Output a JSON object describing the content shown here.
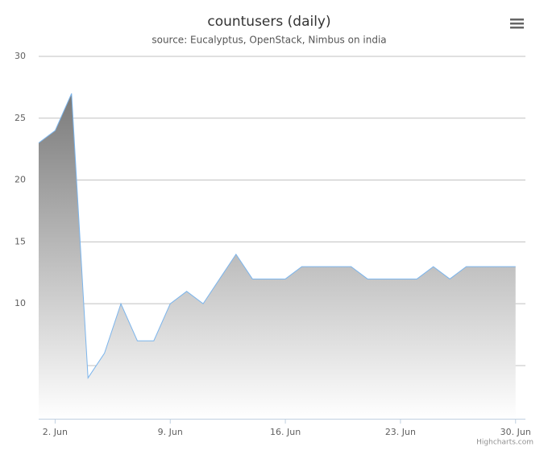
{
  "chart_data": {
    "type": "area",
    "title": "countusers (daily)",
    "subtitle": "source: Eucalyptus, OpenStack, Nimbus on india",
    "credits": "Highcharts.com",
    "x": [
      1,
      2,
      3,
      4,
      5,
      6,
      7,
      8,
      9,
      10,
      11,
      12,
      13,
      14,
      15,
      16,
      17,
      18,
      19,
      20,
      21,
      22,
      23,
      24,
      25,
      26,
      27,
      28,
      29,
      30
    ],
    "series": [
      {
        "color": "#7cb5ec",
        "values": [
          23,
          24,
          27,
          4,
          6,
          10,
          7,
          7,
          10,
          11,
          10,
          12,
          14,
          12,
          12,
          12,
          13,
          13,
          13,
          13,
          12,
          12,
          12,
          12,
          13,
          12,
          13,
          13,
          13,
          13
        ]
      }
    ],
    "xlim": [
      1,
      30.6
    ],
    "xticks": [
      {
        "value": 2,
        "label": "2. Jun"
      },
      {
        "value": 9,
        "label": "9. Jun"
      },
      {
        "value": 16,
        "label": "16. Jun"
      },
      {
        "value": 23,
        "label": "23. Jun"
      },
      {
        "value": 30,
        "label": "30. Jun"
      }
    ],
    "ylim": [
      0.7,
      30
    ],
    "yticks": [
      {
        "value": 5,
        "label": null
      },
      10,
      15,
      20,
      25,
      30
    ],
    "grid": true
  }
}
